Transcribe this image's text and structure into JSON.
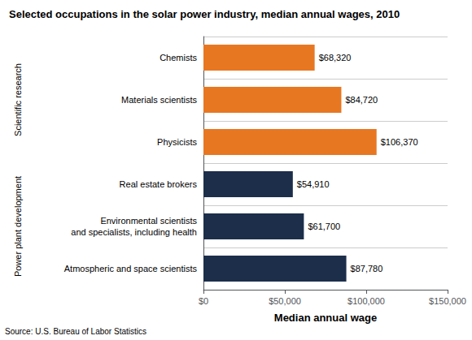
{
  "chart_data": {
    "type": "bar",
    "orientation": "horizontal",
    "title": "Selected occupations in the solar power industry, median annual wages, 2010",
    "categories": [
      "Atmospheric and space scientists",
      "Environmental scientists\nand specialists, including health",
      "Real estate brokers",
      "Physicists",
      "Materials scientists",
      "Chemists"
    ],
    "values": [
      87780,
      61700,
      54910,
      106370,
      84720,
      68320
    ],
    "value_labels": [
      "$87,780",
      "$61,700",
      "$54,910",
      "$106,370",
      "$84,720",
      "$68,320"
    ],
    "data_labels": true,
    "colors": [
      "#1c2e4a",
      "#1c2e4a",
      "#1c2e4a",
      "#e87722",
      "#e87722",
      "#e87722"
    ],
    "xlabel": "Median annual wage",
    "xlim": [
      0,
      150000
    ],
    "xticks": [
      {
        "value": 0,
        "label": "$0"
      },
      {
        "value": 50000,
        "label": "$50,000"
      },
      {
        "value": 100000,
        "label": "$100,000"
      },
      {
        "value": 150000,
        "label": "$150,000"
      }
    ],
    "grid": false,
    "annotations": [
      {
        "text": "Power plant development",
        "y": 1.0
      },
      {
        "text": "Scientific research",
        "y": 4.0
      }
    ],
    "source": "Source: U.S. Bureau of Labor Statistics"
  }
}
